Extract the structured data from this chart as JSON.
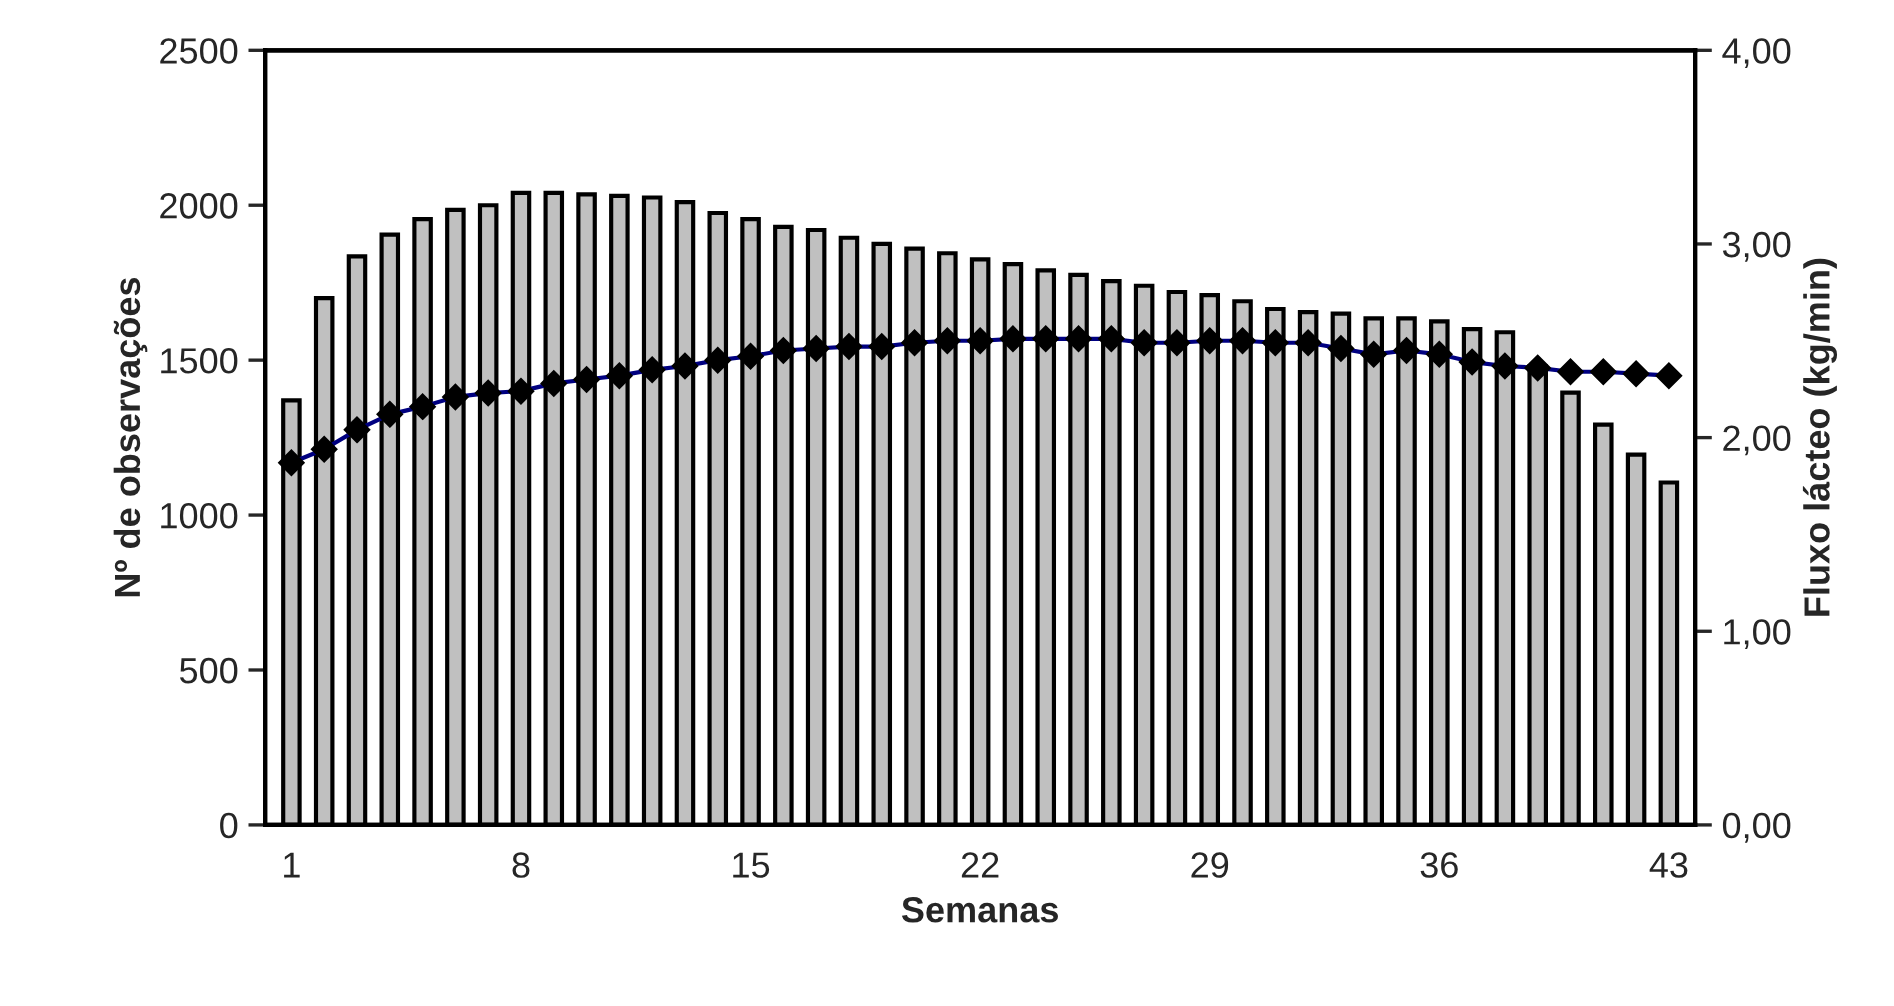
{
  "chart_data": {
    "type": "bar",
    "xlabel": "Semanas",
    "ylabel": "Nº de observações",
    "y2label": "Fluxo lácteo (kg/min)",
    "categories": [
      "1",
      null,
      null,
      null,
      null,
      null,
      null,
      "8",
      null,
      null,
      null,
      null,
      null,
      null,
      "15",
      null,
      null,
      null,
      null,
      null,
      null,
      "22",
      null,
      null,
      null,
      null,
      null,
      null,
      "29",
      null,
      null,
      null,
      null,
      null,
      null,
      "36",
      null,
      null,
      null,
      null,
      null,
      null,
      "43"
    ],
    "series": [
      {
        "color": "#c0c0c0",
        "values": [
          1370,
          1700,
          1835,
          1905,
          1955,
          1985,
          2000,
          2040,
          2040,
          2035,
          2030,
          2025,
          2010,
          1975,
          1955,
          1930,
          1920,
          1895,
          1875,
          1860,
          1845,
          1825,
          1810,
          1790,
          1775,
          1755,
          1740,
          1720,
          1710,
          1690,
          1665,
          1655,
          1650,
          1635,
          1635,
          1625,
          1600,
          1590,
          1480,
          1395,
          1292,
          1195,
          1105
        ]
      },
      {
        "type": "line",
        "axis": "y2",
        "color": "#000080",
        "marker": "diamond",
        "values": [
          1.87,
          1.94,
          2.04,
          2.12,
          2.16,
          2.21,
          2.23,
          2.24,
          2.28,
          2.3,
          2.32,
          2.35,
          2.37,
          2.4,
          2.42,
          2.45,
          2.46,
          2.47,
          2.47,
          2.49,
          2.5,
          2.5,
          2.51,
          2.51,
          2.51,
          2.51,
          2.49,
          2.49,
          2.5,
          2.5,
          2.49,
          2.49,
          2.46,
          2.43,
          2.45,
          2.43,
          2.39,
          2.37,
          2.36,
          2.34,
          2.34,
          2.33,
          2.32
        ]
      }
    ],
    "ylim": [
      0,
      2500
    ],
    "yticks": [
      0,
      500,
      1000,
      1500,
      2000,
      2500
    ],
    "y2lim": [
      0,
      4
    ],
    "y2ticks": [
      {
        "value": 0,
        "label": "0,00"
      },
      {
        "value": 1,
        "label": "1,00"
      },
      {
        "value": 2,
        "label": "2,00"
      },
      {
        "value": 3,
        "label": "3,00"
      },
      {
        "value": 4,
        "label": "4,00"
      }
    ],
    "grid": false,
    "legend": false
  }
}
